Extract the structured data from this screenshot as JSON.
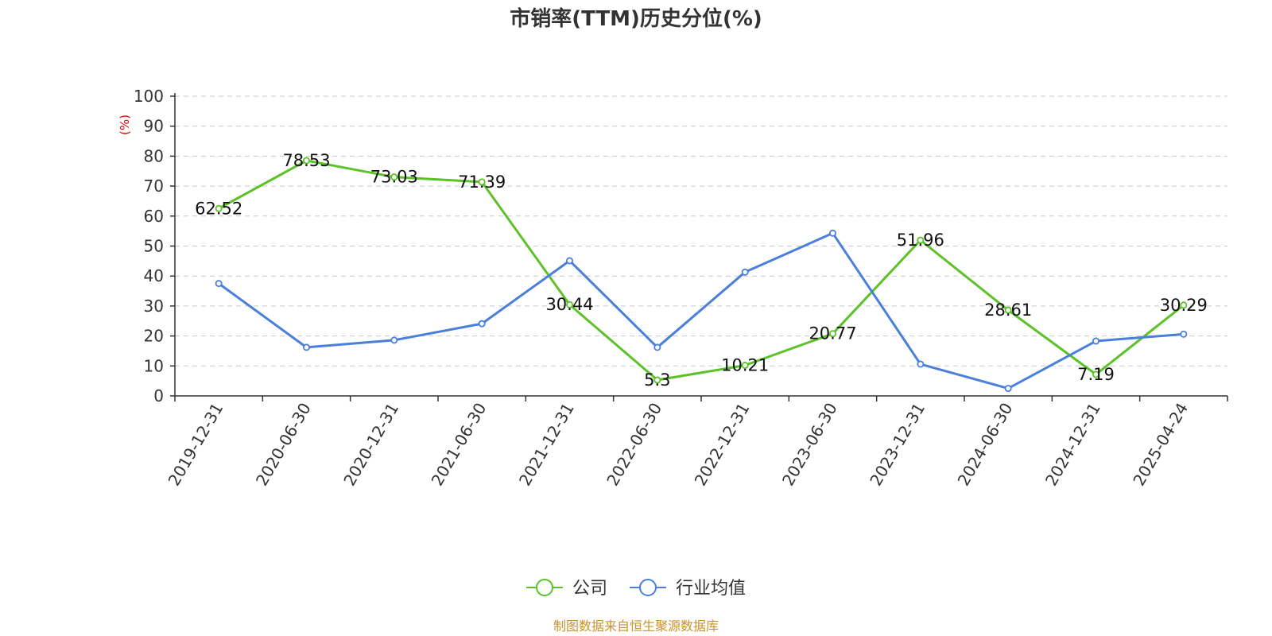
{
  "chart_data": {
    "type": "line",
    "title": "市销率(TTM)历史分位(%)",
    "ylabel": "(%)",
    "xlabel": "",
    "ylim": [
      0,
      100
    ],
    "yticks": [
      0,
      10,
      20,
      30,
      40,
      50,
      60,
      70,
      80,
      90,
      100
    ],
    "grid": true,
    "legend_position": "bottom-center",
    "categories": [
      "2019-12-31",
      "2020-06-30",
      "2020-12-31",
      "2021-06-30",
      "2021-12-31",
      "2022-06-30",
      "2022-12-31",
      "2023-06-30",
      "2023-12-31",
      "2024-06-30",
      "2024-12-31",
      "2025-04-24"
    ],
    "series": [
      {
        "name": "公司",
        "color": "#5cc228",
        "values": [
          62.52,
          78.53,
          73.03,
          71.39,
          30.44,
          5.3,
          10.21,
          20.77,
          51.96,
          28.61,
          7.19,
          30.29
        ],
        "show_labels": true
      },
      {
        "name": "行业均值",
        "color": "#4a7fdb",
        "values": [
          37.5,
          16.2,
          18.6,
          24.1,
          45.1,
          16.2,
          41.3,
          54.3,
          10.6,
          2.5,
          18.3,
          20.6
        ],
        "show_labels": false
      }
    ],
    "source": "制图数据来自恒生聚源数据库"
  }
}
